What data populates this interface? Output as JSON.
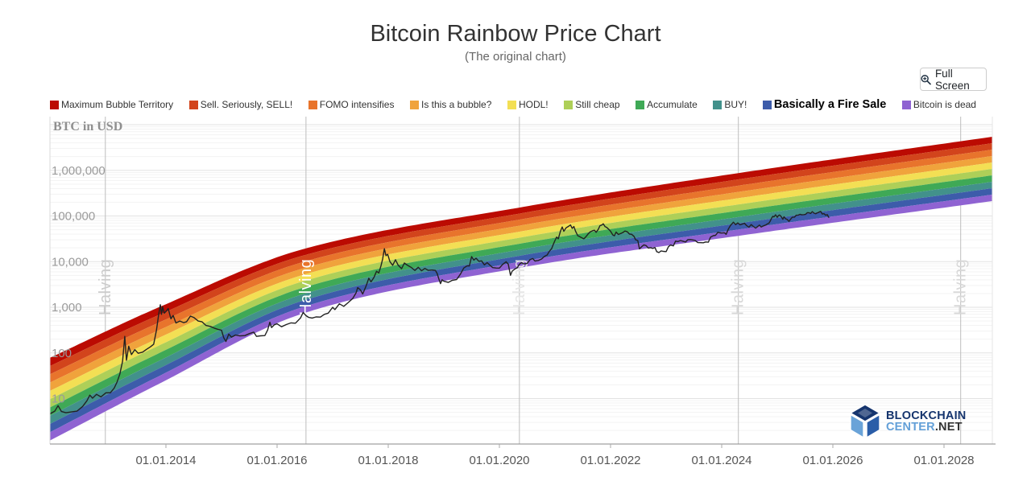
{
  "title": "Bitcoin Rainbow Price Chart",
  "subtitle": "(The original chart)",
  "fullscreen_button": {
    "label": "Full Screen",
    "icon": "zoom-in-icon"
  },
  "watermark": {
    "line1": "BLOCKCHAIN",
    "line2a": "CENTER",
    "line2b": ".NET"
  },
  "legend": [
    {
      "label": "Maximum Bubble Territory",
      "color": "#bb0b02",
      "bold": false
    },
    {
      "label": "Sell. Seriously, SELL!",
      "color": "#d2441c",
      "bold": false
    },
    {
      "label": "FOMO intensifies",
      "color": "#e8742c",
      "bold": false
    },
    {
      "label": "Is this a bubble?",
      "color": "#f0a33c",
      "bold": false
    },
    {
      "label": "HODL!",
      "color": "#f3df54",
      "bold": false
    },
    {
      "label": "Still cheap",
      "color": "#aecf58",
      "bold": false
    },
    {
      "label": "Accumulate",
      "color": "#3fa956",
      "bold": false
    },
    {
      "label": "BUY!",
      "color": "#42918b",
      "bold": false
    },
    {
      "label": "Basically a Fire Sale",
      "color": "#3d5caa",
      "bold": true
    },
    {
      "label": "Bitcoin is dead",
      "color": "#8f63d2",
      "bold": false
    }
  ],
  "chart_data": {
    "type": "line",
    "title": "Bitcoin Rainbow Price Chart",
    "ylabel": "BTC in USD",
    "y_scale": "log",
    "yticks": [
      {
        "value": 10,
        "label": "10"
      },
      {
        "value": 100,
        "label": "100"
      },
      {
        "value": 1000,
        "label": "1,000"
      },
      {
        "value": 10000,
        "label": "10,000"
      },
      {
        "value": 100000,
        "label": "100,000"
      },
      {
        "value": 1000000,
        "label": "1,000,000"
      }
    ],
    "xticks": [
      {
        "year": 2014,
        "label": "01.01.2014"
      },
      {
        "year": 2016,
        "label": "01.01.2016"
      },
      {
        "year": 2018,
        "label": "01.01.2018"
      },
      {
        "year": 2020,
        "label": "01.01.2020"
      },
      {
        "year": 2022,
        "label": "01.01.2022"
      },
      {
        "year": 2024,
        "label": "01.01.2024"
      },
      {
        "year": 2026,
        "label": "01.01.2026"
      },
      {
        "year": 2028,
        "label": "01.01.2028"
      }
    ],
    "halvings": {
      "label": "Halving",
      "years": [
        2012.91,
        2016.52,
        2020.36,
        2024.3,
        2028.3
      ]
    },
    "rainbow_bands": {
      "note": "band boundary anchors: [year, top_of_red_usd, bottom_of_purple_usd]",
      "anchors": [
        [
          2011.91,
          78,
          1.2
        ],
        [
          2013.84,
          960,
          20
        ],
        [
          2016.45,
          18500,
          720
        ],
        [
          2020.36,
          153000,
          7300
        ],
        [
          2024.32,
          876000,
          37000
        ],
        [
          2028.87,
          5440000,
          212000
        ]
      ]
    },
    "price_series": {
      "name": "BTC price in USD",
      "points": [
        [
          2011.91,
          4.6
        ],
        [
          2012.0,
          5.3
        ],
        [
          2012.06,
          7.0
        ],
        [
          2012.12,
          5.2
        ],
        [
          2012.2,
          4.9
        ],
        [
          2012.3,
          5.1
        ],
        [
          2012.4,
          5.3
        ],
        [
          2012.5,
          6.7
        ],
        [
          2012.58,
          9.0
        ],
        [
          2012.63,
          11.9
        ],
        [
          2012.68,
          10.2
        ],
        [
          2012.75,
          12.4
        ],
        [
          2012.83,
          10.9
        ],
        [
          2012.92,
          13.4
        ],
        [
          2013.0,
          13.4
        ],
        [
          2013.07,
          17
        ],
        [
          2013.12,
          23
        ],
        [
          2013.17,
          34
        ],
        [
          2013.22,
          66
        ],
        [
          2013.26,
          230
        ],
        [
          2013.29,
          69
        ],
        [
          2013.33,
          140
        ],
        [
          2013.38,
          92
        ],
        [
          2013.44,
          118
        ],
        [
          2013.5,
          98
        ],
        [
          2013.58,
          104
        ],
        [
          2013.65,
          120
        ],
        [
          2013.72,
          136
        ],
        [
          2013.78,
          155
        ],
        [
          2013.83,
          320
        ],
        [
          2013.87,
          700
        ],
        [
          2013.9,
          1140
        ],
        [
          2013.92,
          700
        ],
        [
          2013.94,
          1020
        ],
        [
          2013.97,
          745
        ],
        [
          2014.0,
          808
        ],
        [
          2014.04,
          940
        ],
        [
          2014.09,
          560
        ],
        [
          2014.13,
          660
        ],
        [
          2014.18,
          453
        ],
        [
          2014.25,
          500
        ],
        [
          2014.32,
          460
        ],
        [
          2014.37,
          480
        ],
        [
          2014.44,
          640
        ],
        [
          2014.5,
          600
        ],
        [
          2014.58,
          500
        ],
        [
          2014.65,
          480
        ],
        [
          2014.72,
          400
        ],
        [
          2014.8,
          380
        ],
        [
          2014.87,
          350
        ],
        [
          2014.93,
          330
        ],
        [
          2015.0,
          315
        ],
        [
          2015.04,
          215
        ],
        [
          2015.08,
          178
        ],
        [
          2015.13,
          258
        ],
        [
          2015.18,
          222
        ],
        [
          2015.25,
          247
        ],
        [
          2015.33,
          236
        ],
        [
          2015.42,
          240
        ],
        [
          2015.5,
          264
        ],
        [
          2015.58,
          285
        ],
        [
          2015.63,
          230
        ],
        [
          2015.7,
          237
        ],
        [
          2015.78,
          240
        ],
        [
          2015.83,
          318
        ],
        [
          2015.87,
          470
        ],
        [
          2015.9,
          360
        ],
        [
          2015.95,
          415
        ],
        [
          2016.0,
          434
        ],
        [
          2016.08,
          374
        ],
        [
          2016.17,
          420
        ],
        [
          2016.25,
          455
        ],
        [
          2016.33,
          448
        ],
        [
          2016.42,
          580
        ],
        [
          2016.47,
          770
        ],
        [
          2016.52,
          655
        ],
        [
          2016.57,
          600
        ],
        [
          2016.63,
          580
        ],
        [
          2016.7,
          615
        ],
        [
          2016.78,
          610
        ],
        [
          2016.85,
          700
        ],
        [
          2016.92,
          745
        ],
        [
          2017.0,
          998
        ],
        [
          2017.04,
          890
        ],
        [
          2017.12,
          1190
        ],
        [
          2017.2,
          1050
        ],
        [
          2017.28,
          1270
        ],
        [
          2017.36,
          1550
        ],
        [
          2017.42,
          2050
        ],
        [
          2017.45,
          2700
        ],
        [
          2017.5,
          2400
        ],
        [
          2017.54,
          1950
        ],
        [
          2017.6,
          2900
        ],
        [
          2017.65,
          4350
        ],
        [
          2017.69,
          3600
        ],
        [
          2017.74,
          4450
        ],
        [
          2017.79,
          6150
        ],
        [
          2017.83,
          5650
        ],
        [
          2017.87,
          8100
        ],
        [
          2017.9,
          11500
        ],
        [
          2017.93,
          19200
        ],
        [
          2017.96,
          13500
        ],
        [
          2017.99,
          14500
        ],
        [
          2018.03,
          10000
        ],
        [
          2018.08,
          8300
        ],
        [
          2018.13,
          11000
        ],
        [
          2018.18,
          8300
        ],
        [
          2018.24,
          7000
        ],
        [
          2018.29,
          9300
        ],
        [
          2018.34,
          8400
        ],
        [
          2018.41,
          7500
        ],
        [
          2018.48,
          6400
        ],
        [
          2018.54,
          7500
        ],
        [
          2018.6,
          6300
        ],
        [
          2018.66,
          7100
        ],
        [
          2018.72,
          6450
        ],
        [
          2018.79,
          6550
        ],
        [
          2018.85,
          6400
        ],
        [
          2018.88,
          5500
        ],
        [
          2018.91,
          4200
        ],
        [
          2018.94,
          3300
        ],
        [
          2018.97,
          4000
        ],
        [
          2019.0,
          3730
        ],
        [
          2019.08,
          3500
        ],
        [
          2019.15,
          3900
        ],
        [
          2019.23,
          4050
        ],
        [
          2019.3,
          5350
        ],
        [
          2019.36,
          7250
        ],
        [
          2019.42,
          8100
        ],
        [
          2019.46,
          8000
        ],
        [
          2019.5,
          12900
        ],
        [
          2019.54,
          10800
        ],
        [
          2019.58,
          11900
        ],
        [
          2019.63,
          10200
        ],
        [
          2019.68,
          10400
        ],
        [
          2019.73,
          8500
        ],
        [
          2019.78,
          9500
        ],
        [
          2019.83,
          8300
        ],
        [
          2019.88,
          7400
        ],
        [
          2019.94,
          7250
        ],
        [
          2020.0,
          7200
        ],
        [
          2020.06,
          8700
        ],
        [
          2020.12,
          9950
        ],
        [
          2020.16,
          8800
        ],
        [
          2020.2,
          5000
        ],
        [
          2020.23,
          6200
        ],
        [
          2020.28,
          6900
        ],
        [
          2020.32,
          7300
        ],
        [
          2020.36,
          8750
        ],
        [
          2020.4,
          9500
        ],
        [
          2020.44,
          8900
        ],
        [
          2020.5,
          9150
        ],
        [
          2020.55,
          11000
        ],
        [
          2020.6,
          11700
        ],
        [
          2020.64,
          10300
        ],
        [
          2020.7,
          10600
        ],
        [
          2020.76,
          11400
        ],
        [
          2020.81,
          13050
        ],
        [
          2020.86,
          14000
        ],
        [
          2020.9,
          16900
        ],
        [
          2020.94,
          19300
        ],
        [
          2020.97,
          23800
        ],
        [
          2021.0,
          29000
        ],
        [
          2021.03,
          34500
        ],
        [
          2021.06,
          31600
        ],
        [
          2021.1,
          47000
        ],
        [
          2021.13,
          57400
        ],
        [
          2021.16,
          46300
        ],
        [
          2021.2,
          55000
        ],
        [
          2021.24,
          58900
        ],
        [
          2021.28,
          63500
        ],
        [
          2021.31,
          53600
        ],
        [
          2021.34,
          58800
        ],
        [
          2021.37,
          46700
        ],
        [
          2021.41,
          37000
        ],
        [
          2021.44,
          35600
        ],
        [
          2021.48,
          33400
        ],
        [
          2021.52,
          31600
        ],
        [
          2021.55,
          34300
        ],
        [
          2021.59,
          39500
        ],
        [
          2021.63,
          44600
        ],
        [
          2021.67,
          47100
        ],
        [
          2021.71,
          48800
        ],
        [
          2021.74,
          43800
        ],
        [
          2021.78,
          51000
        ],
        [
          2021.81,
          61400
        ],
        [
          2021.84,
          63100
        ],
        [
          2021.87,
          67500
        ],
        [
          2021.9,
          58700
        ],
        [
          2021.93,
          56300
        ],
        [
          2021.97,
          50800
        ],
        [
          2022.0,
          46200
        ],
        [
          2022.04,
          38500
        ],
        [
          2022.07,
          36800
        ],
        [
          2022.1,
          44400
        ],
        [
          2022.14,
          39400
        ],
        [
          2022.18,
          41100
        ],
        [
          2022.22,
          43200
        ],
        [
          2022.26,
          46800
        ],
        [
          2022.3,
          45100
        ],
        [
          2022.34,
          40100
        ],
        [
          2022.38,
          39700
        ],
        [
          2022.42,
          36000
        ],
        [
          2022.45,
          30100
        ],
        [
          2022.49,
          29000
        ],
        [
          2022.52,
          19000
        ],
        [
          2022.56,
          21200
        ],
        [
          2022.6,
          23300
        ],
        [
          2022.64,
          22500
        ],
        [
          2022.68,
          19800
        ],
        [
          2022.72,
          20200
        ],
        [
          2022.76,
          19500
        ],
        [
          2022.8,
          20300
        ],
        [
          2022.83,
          16600
        ],
        [
          2022.87,
          15800
        ],
        [
          2022.91,
          17200
        ],
        [
          2022.95,
          16800
        ],
        [
          2023.0,
          16600
        ],
        [
          2023.04,
          21100
        ],
        [
          2023.08,
          23100
        ],
        [
          2023.13,
          22100
        ],
        [
          2023.17,
          28200
        ],
        [
          2023.21,
          27500
        ],
        [
          2023.26,
          29000
        ],
        [
          2023.3,
          28100
        ],
        [
          2023.35,
          26900
        ],
        [
          2023.39,
          30200
        ],
        [
          2023.44,
          30400
        ],
        [
          2023.48,
          29900
        ],
        [
          2023.52,
          29200
        ],
        [
          2023.57,
          26100
        ],
        [
          2023.62,
          26000
        ],
        [
          2023.67,
          25900
        ],
        [
          2023.71,
          27000
        ],
        [
          2023.76,
          26600
        ],
        [
          2023.8,
          34600
        ],
        [
          2023.85,
          37000
        ],
        [
          2023.89,
          37800
        ],
        [
          2023.93,
          43800
        ],
        [
          2023.97,
          42600
        ],
        [
          2024.0,
          42300
        ],
        [
          2024.05,
          42900
        ],
        [
          2024.08,
          39600
        ],
        [
          2024.12,
          51800
        ],
        [
          2024.16,
          62400
        ],
        [
          2024.19,
          68300
        ],
        [
          2024.21,
          73100
        ],
        [
          2024.25,
          64600
        ],
        [
          2024.29,
          70600
        ],
        [
          2024.33,
          63900
        ],
        [
          2024.37,
          66300
        ],
        [
          2024.41,
          69200
        ],
        [
          2024.45,
          61100
        ],
        [
          2024.49,
          56900
        ],
        [
          2024.53,
          64700
        ],
        [
          2024.57,
          58900
        ],
        [
          2024.61,
          54100
        ],
        [
          2024.65,
          59300
        ],
        [
          2024.68,
          63200
        ],
        [
          2024.71,
          57300
        ],
        [
          2024.75,
          60800
        ],
        [
          2024.79,
          63100
        ],
        [
          2024.82,
          66900
        ],
        [
          2024.85,
          69300
        ],
        [
          2024.87,
          75900
        ],
        [
          2024.9,
          90500
        ],
        [
          2024.92,
          98200
        ],
        [
          2024.94,
          95700
        ],
        [
          2024.97,
          106100
        ],
        [
          2025.0,
          93500
        ],
        [
          2025.02,
          102100
        ],
        [
          2025.04,
          104800
        ],
        [
          2025.07,
          97700
        ],
        [
          2025.1,
          84400
        ],
        [
          2025.12,
          96100
        ],
        [
          2025.15,
          86800
        ],
        [
          2025.18,
          83700
        ],
        [
          2025.21,
          76300
        ],
        [
          2025.24,
          85200
        ],
        [
          2025.27,
          93800
        ],
        [
          2025.31,
          94300
        ],
        [
          2025.34,
          103700
        ],
        [
          2025.38,
          104600
        ],
        [
          2025.41,
          109000
        ],
        [
          2025.44,
          105700
        ],
        [
          2025.48,
          107300
        ],
        [
          2025.51,
          108900
        ],
        [
          2025.54,
          118000
        ],
        [
          2025.57,
          117400
        ],
        [
          2025.6,
          113300
        ],
        [
          2025.63,
          124300
        ],
        [
          2025.66,
          115800
        ],
        [
          2025.69,
          112100
        ],
        [
          2025.72,
          117300
        ],
        [
          2025.75,
          121100
        ],
        [
          2025.78,
          125900
        ],
        [
          2025.81,
          110100
        ],
        [
          2025.84,
          112600
        ],
        [
          2025.87,
          103900
        ],
        [
          2025.9,
          106500
        ],
        [
          2025.93,
          91400
        ]
      ]
    }
  }
}
